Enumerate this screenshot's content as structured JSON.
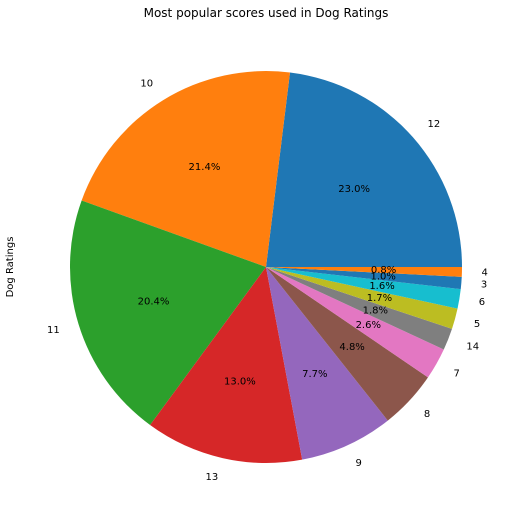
{
  "chart_data": {
    "type": "pie",
    "title": "Most popular scores used in Dog Ratings",
    "ylabel": "Dog Ratings",
    "start_angle_deg": 0,
    "direction": "counterclockwise",
    "slices": [
      {
        "label": "12",
        "percent": 23.0,
        "pct_text": "23.0%",
        "color": "#1f77b4"
      },
      {
        "label": "10",
        "percent": 21.4,
        "pct_text": "21.4%",
        "color": "#ff7f0e"
      },
      {
        "label": "11",
        "percent": 20.4,
        "pct_text": "20.4%",
        "color": "#2ca02c"
      },
      {
        "label": "13",
        "percent": 13.0,
        "pct_text": "13.0%",
        "color": "#d62728"
      },
      {
        "label": "9",
        "percent": 7.7,
        "pct_text": "7.7%",
        "color": "#9467bd"
      },
      {
        "label": "8",
        "percent": 4.8,
        "pct_text": "4.8%",
        "color": "#8c564b"
      },
      {
        "label": "7",
        "percent": 2.6,
        "pct_text": "2.6%",
        "color": "#e377c2"
      },
      {
        "label": "14",
        "percent": 1.8,
        "pct_text": "1.8%",
        "color": "#7f7f7f"
      },
      {
        "label": "5",
        "percent": 1.7,
        "pct_text": "1.7%",
        "color": "#bcbd22"
      },
      {
        "label": "6",
        "percent": 1.6,
        "pct_text": "1.6%",
        "color": "#17becf"
      },
      {
        "label": "3",
        "percent": 1.0,
        "pct_text": "1.0%",
        "color": "#1f77b4"
      },
      {
        "label": "4",
        "percent": 0.8,
        "pct_text": "0.8%",
        "color": "#ff7f0e"
      }
    ]
  }
}
